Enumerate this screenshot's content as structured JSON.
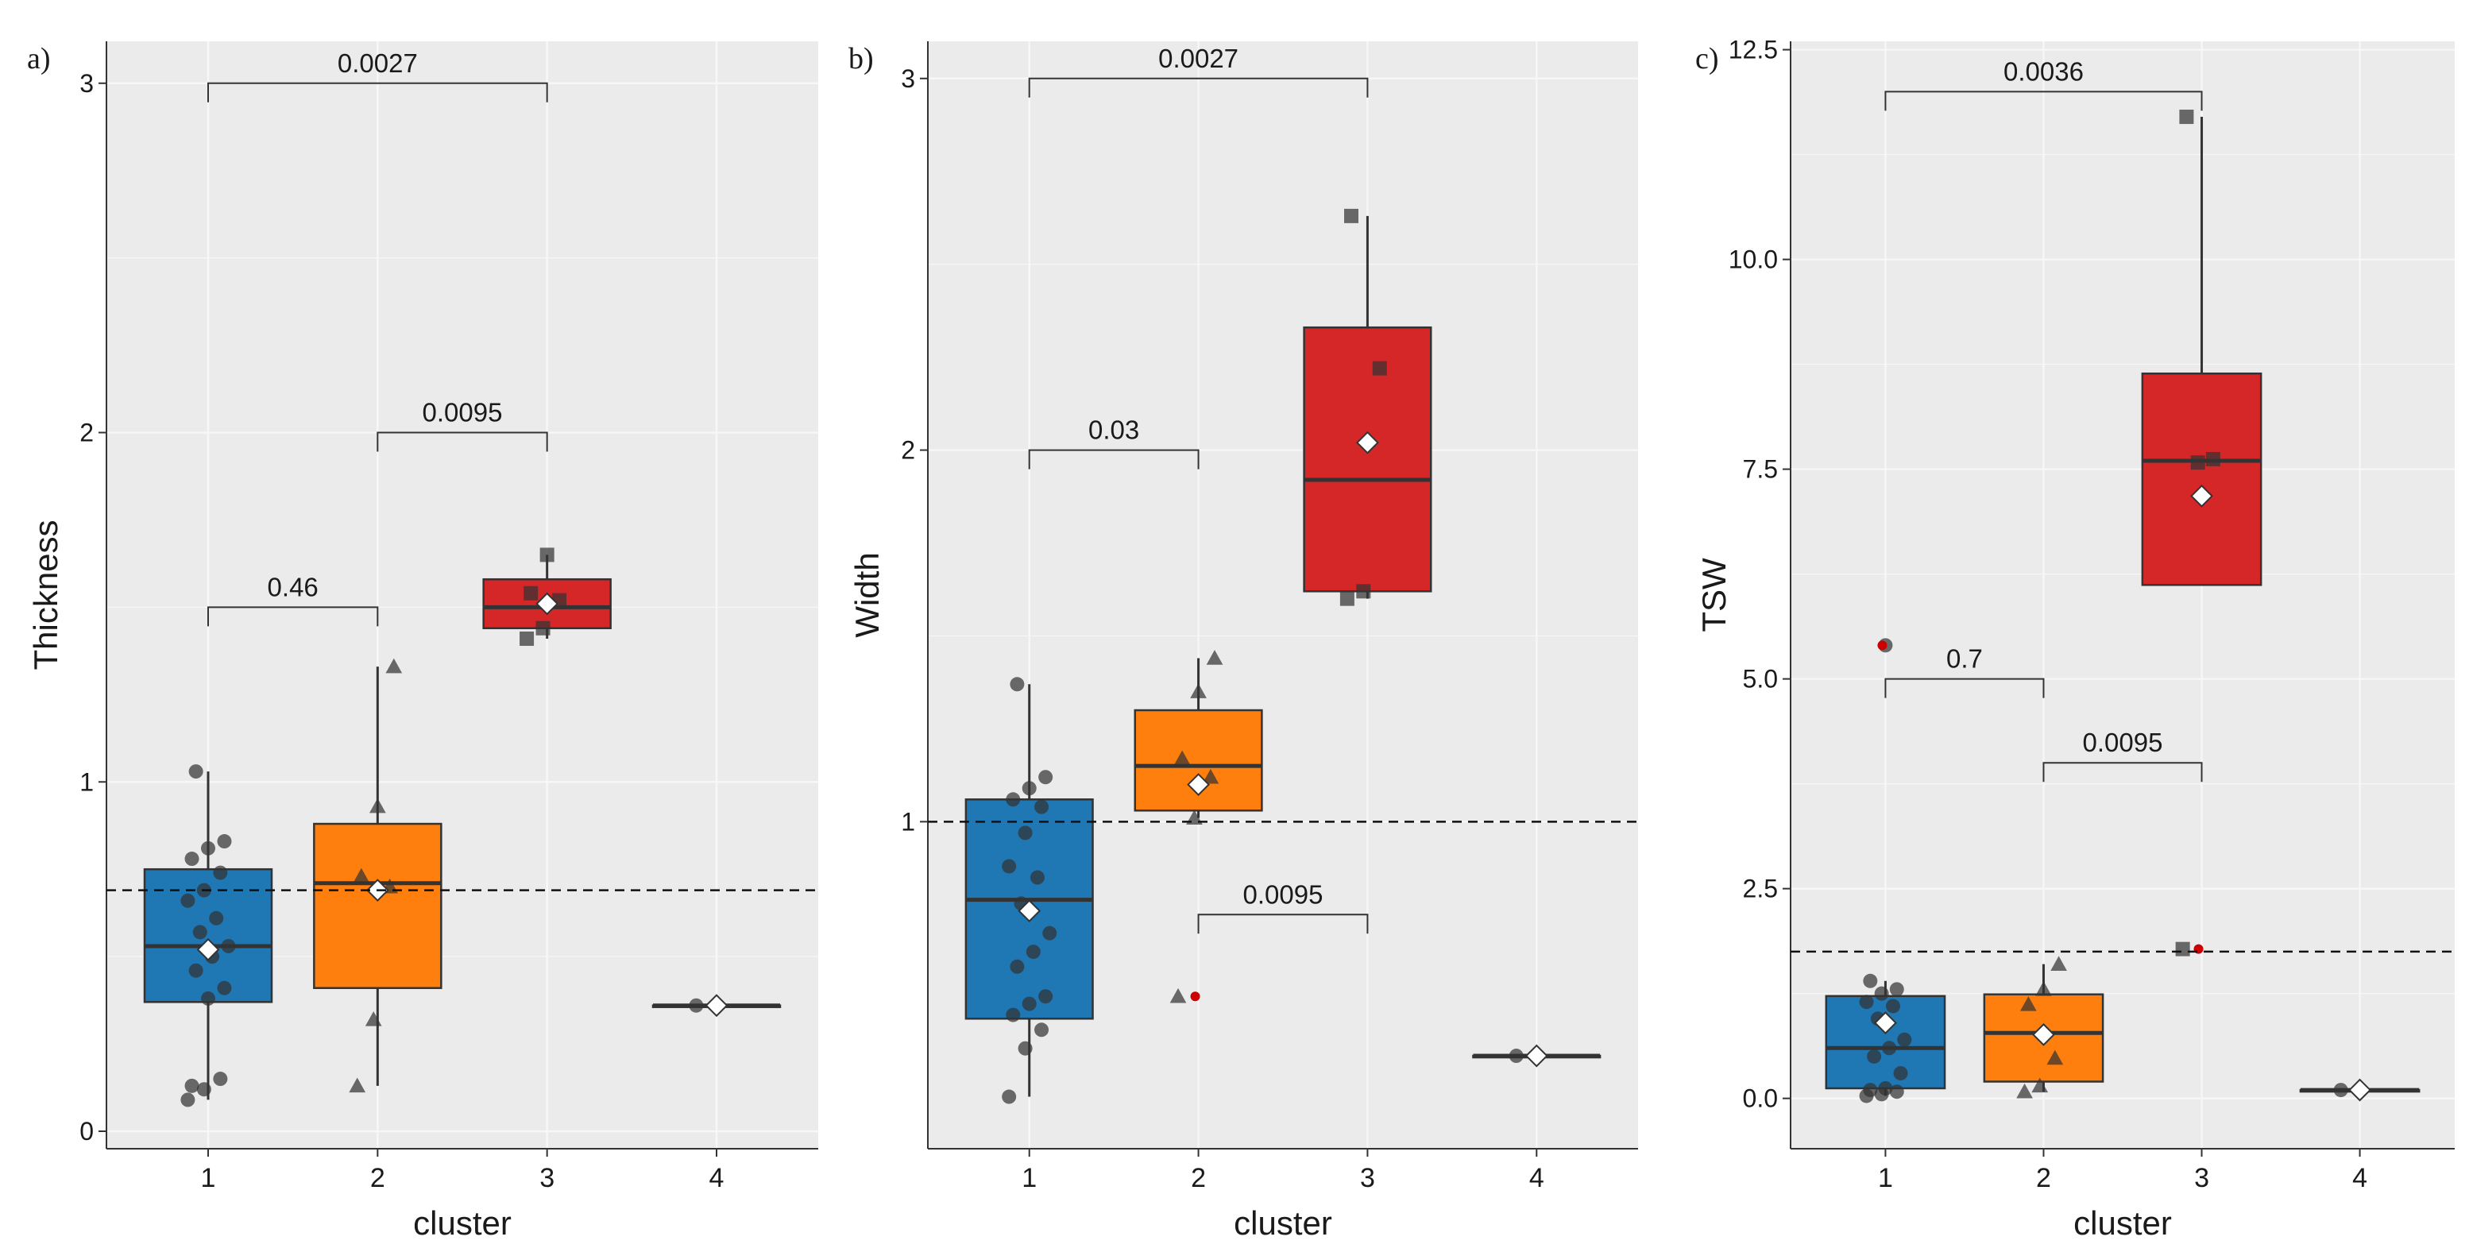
{
  "figure": {
    "xlabel": "cluster",
    "categories": [
      "1",
      "2",
      "3",
      "4"
    ]
  },
  "colors": {
    "cluster_1": "#1f77b4",
    "cluster_2": "#ff7f0e",
    "cluster_3": "#d62728",
    "cluster_4": "#333333",
    "panel_bg": "#ebebeb",
    "grid": "#f7f7f7",
    "outlier": "#cc0000",
    "point": "#333333",
    "mean_marker": "#ffffff"
  },
  "chart_data": [
    {
      "type": "box",
      "panel_label": "a)",
      "title": "",
      "xlabel": "cluster",
      "ylabel": "Thickness",
      "categories": [
        "1",
        "2",
        "3",
        "4"
      ],
      "ylim": [
        -0.05,
        3.12
      ],
      "yticks": [
        0,
        1,
        2,
        3
      ],
      "ytick_labels": [
        "0",
        "1",
        "2",
        "3"
      ],
      "grid": true,
      "reference_line": 0.69,
      "boxes": [
        {
          "cluster": "1",
          "q1": 0.37,
          "median": 0.53,
          "q3": 0.75,
          "whisker_low": 0.09,
          "whisker_high": 1.03,
          "mean": 0.52,
          "points": [
            0.09,
            0.12,
            0.15,
            0.13,
            0.38,
            0.41,
            0.46,
            0.5,
            0.53,
            0.57,
            0.61,
            0.66,
            0.69,
            0.74,
            0.78,
            0.81,
            0.83,
            1.03
          ]
        },
        {
          "cluster": "2",
          "q1": 0.41,
          "median": 0.71,
          "q3": 0.88,
          "whisker_low": 0.13,
          "whisker_high": 1.33,
          "mean": 0.69,
          "points": [
            0.13,
            0.32,
            0.7,
            0.73,
            0.93,
            1.33
          ]
        },
        {
          "cluster": "3",
          "q1": 1.44,
          "median": 1.5,
          "q3": 1.58,
          "whisker_low": 1.41,
          "whisker_high": 1.65,
          "mean": 1.51,
          "points": [
            1.41,
            1.44,
            1.52,
            1.54,
            1.65
          ]
        },
        {
          "cluster": "4",
          "q1": 0.36,
          "median": 0.36,
          "q3": 0.36,
          "whisker_low": 0.36,
          "whisker_high": 0.36,
          "mean": 0.36,
          "points": [
            0.36
          ]
        }
      ],
      "outliers": [],
      "comparisons": [
        {
          "from": "1",
          "to": "3",
          "y": 3.0,
          "label": "0.0027"
        },
        {
          "from": "2",
          "to": "3",
          "y": 2.0,
          "label": "0.0095"
        },
        {
          "from": "1",
          "to": "2",
          "y": 1.5,
          "label": "0.46"
        }
      ]
    },
    {
      "type": "box",
      "panel_label": "b)",
      "title": "",
      "xlabel": "cluster",
      "ylabel": "Width",
      "categories": [
        "1",
        "2",
        "3",
        "4"
      ],
      "ylim": [
        0.12,
        3.1
      ],
      "yticks": [
        1,
        2,
        3
      ],
      "ytick_labels": [
        "1",
        "2",
        "3"
      ],
      "grid": true,
      "reference_line": 1.0,
      "boxes": [
        {
          "cluster": "1",
          "q1": 0.47,
          "median": 0.79,
          "q3": 1.06,
          "whisker_low": 0.26,
          "whisker_high": 1.37,
          "mean": 0.76,
          "points": [
            0.26,
            0.39,
            0.44,
            0.48,
            0.51,
            0.53,
            0.61,
            0.65,
            0.7,
            0.78,
            0.85,
            0.88,
            0.97,
            1.04,
            1.06,
            1.09,
            1.12,
            1.37
          ]
        },
        {
          "cluster": "2",
          "q1": 1.03,
          "median": 1.15,
          "q3": 1.3,
          "whisker_low": 1.01,
          "whisker_high": 1.44,
          "mean": 1.1,
          "points": [
            0.53,
            1.01,
            1.12,
            1.17,
            1.35,
            1.44
          ]
        },
        {
          "cluster": "3",
          "q1": 1.62,
          "median": 1.92,
          "q3": 2.33,
          "whisker_low": 1.6,
          "whisker_high": 2.63,
          "mean": 2.02,
          "points": [
            1.6,
            1.62,
            2.22,
            2.63
          ]
        },
        {
          "cluster": "4",
          "q1": 0.37,
          "median": 0.37,
          "q3": 0.37,
          "whisker_low": 0.37,
          "whisker_high": 0.37,
          "mean": 0.37,
          "points": [
            0.37
          ]
        }
      ],
      "outliers": [
        {
          "cluster": "2",
          "value": 0.53
        }
      ],
      "comparisons": [
        {
          "from": "1",
          "to": "3",
          "y": 3.0,
          "label": "0.0027"
        },
        {
          "from": "1",
          "to": "2",
          "y": 2.0,
          "label": "0.03"
        },
        {
          "from": "2",
          "to": "3",
          "y": 0.75,
          "label": "0.0095"
        }
      ]
    },
    {
      "type": "box",
      "panel_label": "c)",
      "title": "",
      "xlabel": "cluster",
      "ylabel": "TSW",
      "categories": [
        "1",
        "2",
        "3",
        "4"
      ],
      "ylim": [
        -0.6,
        12.6
      ],
      "yticks": [
        0,
        2.5,
        5,
        7.5,
        10,
        12.5
      ],
      "ytick_labels": [
        "0.0",
        "2.5",
        "5.0",
        "7.5",
        "10.0",
        "12.5"
      ],
      "grid": true,
      "reference_line": 1.75,
      "boxes": [
        {
          "cluster": "1",
          "q1": 0.12,
          "median": 0.6,
          "q3": 1.22,
          "whisker_low": 0.03,
          "whisker_high": 1.4,
          "mean": 0.9,
          "points": [
            0.03,
            0.05,
            0.08,
            0.1,
            0.12,
            0.3,
            0.5,
            0.6,
            0.7,
            0.95,
            1.1,
            1.15,
            1.25,
            1.3,
            1.4,
            5.4
          ]
        },
        {
          "cluster": "2",
          "q1": 0.2,
          "median": 0.78,
          "q3": 1.24,
          "whisker_low": 0.08,
          "whisker_high": 1.6,
          "mean": 0.76,
          "points": [
            0.08,
            0.15,
            0.48,
            1.12,
            1.3,
            1.6
          ]
        },
        {
          "cluster": "3",
          "q1": 6.12,
          "median": 7.6,
          "q3": 8.64,
          "whisker_low": 6.12,
          "whisker_high": 11.7,
          "mean": 7.18,
          "points": [
            1.78,
            7.58,
            7.62,
            11.7
          ]
        },
        {
          "cluster": "4",
          "q1": 0.1,
          "median": 0.1,
          "q3": 0.1,
          "whisker_low": 0.1,
          "whisker_high": 0.1,
          "mean": 0.1,
          "points": [
            0.1
          ]
        }
      ],
      "outliers": [
        {
          "cluster": "1",
          "value": 5.4
        },
        {
          "cluster": "3",
          "value": 1.78
        }
      ],
      "comparisons": [
        {
          "from": "1",
          "to": "3",
          "y": 12.0,
          "label": "0.0036"
        },
        {
          "from": "1",
          "to": "2",
          "y": 5.0,
          "label": "0.7"
        },
        {
          "from": "2",
          "to": "3",
          "y": 4.0,
          "label": "0.0095"
        }
      ]
    }
  ]
}
